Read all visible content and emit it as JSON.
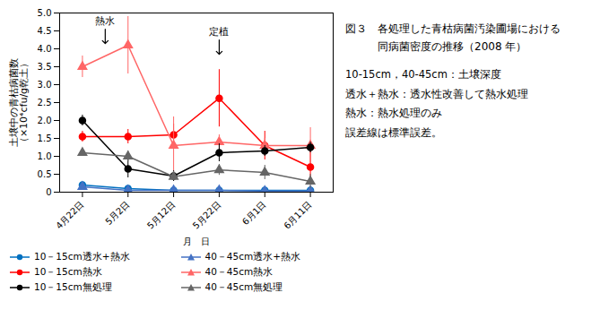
{
  "chart_data": {
    "type": "line",
    "title": "図３　各処理した青枯病菌汚染圃場における\n　　　同病菌密度の推移（2008 年）",
    "caption": [
      "10-15cm，40-45cm：土壌深度",
      "透水＋熱水：透水性改善して熱水処理",
      "熱水：熱水処理のみ",
      "誤差線は標準誤差。"
    ],
    "xlabel": "月　日",
    "ylabel": "土壌中の青枯病菌数\n（×10⁴cfu/g乾土）",
    "categories": [
      "4月22日",
      "5月2日",
      "5月12日",
      "5月22日",
      "6月1日",
      "6月11日"
    ],
    "ylim": [
      0,
      5.0
    ],
    "yticks": [
      0,
      0.5,
      {
        "value": 1.0,
        "label": "1.0"
      },
      1.5,
      {
        "value": 2.0,
        "label": "2.0"
      },
      2.5,
      {
        "value": 3.0,
        "label": "3.0"
      },
      3.5,
      {
        "value": 4.0,
        "label": "4.0"
      },
      4.5,
      {
        "value": 5.0,
        "label": "5.0"
      }
    ],
    "grid": false,
    "legend": "bottom",
    "series": [
      {
        "name": "10－15cm透水+熱水",
        "color": "#0070c0",
        "marker": "circle",
        "line_style": "solid",
        "values": [
          0.2,
          0.1,
          0.05,
          0.05,
          0.05,
          0.05
        ],
        "yerr": [
          0.05,
          0.05,
          0.02,
          0.02,
          0.02,
          0.02
        ]
      },
      {
        "name": "40－45cm透水+熱水",
        "color": "#4472c4",
        "marker": "triangle",
        "line_style": "solid",
        "values": [
          0.15,
          0.05,
          0.05,
          0.05,
          0.03,
          0.03
        ],
        "yerr": [
          0.05,
          0.03,
          0.02,
          0.02,
          0.01,
          0.01
        ]
      },
      {
        "name": "10－15cm熱水",
        "color": "#ff0000",
        "marker": "circle",
        "line_style": "solid",
        "values": [
          1.55,
          1.55,
          1.6,
          2.62,
          1.3,
          0.7
        ],
        "yerr": [
          0.15,
          0.2,
          0.3,
          0.8,
          0.4,
          0.5
        ]
      },
      {
        "name": "40－45cm熱水",
        "color": "#ff6666",
        "marker": "triangle",
        "line_style": "solid",
        "values": [
          3.5,
          4.1,
          1.3,
          1.4,
          1.3,
          1.3
        ],
        "yerr": [
          0.3,
          0.8,
          0.8,
          0.2,
          0.2,
          0.5
        ]
      },
      {
        "name": "10－15cm無処理",
        "color": "#000000",
        "marker": "circle",
        "line_style": "solid",
        "values": [
          2.0,
          0.65,
          0.45,
          1.1,
          1.15,
          1.25
        ],
        "yerr": [
          0.15,
          0.25,
          0.15,
          0.25,
          0.15,
          0.15
        ]
      },
      {
        "name": "40－45cm無処理",
        "color": "#666666",
        "marker": "triangle",
        "line_style": "solid",
        "values": [
          1.1,
          1.0,
          0.43,
          0.62,
          0.55,
          0.3
        ],
        "yerr": [
          0.1,
          0.15,
          0.1,
          0.15,
          0.2,
          0.2
        ]
      }
    ],
    "annotations": [
      {
        "text": "熱水",
        "x": 0.5,
        "y": 4.15
      },
      {
        "text": "定植",
        "x": 3.0,
        "y": 3.85
      }
    ]
  }
}
